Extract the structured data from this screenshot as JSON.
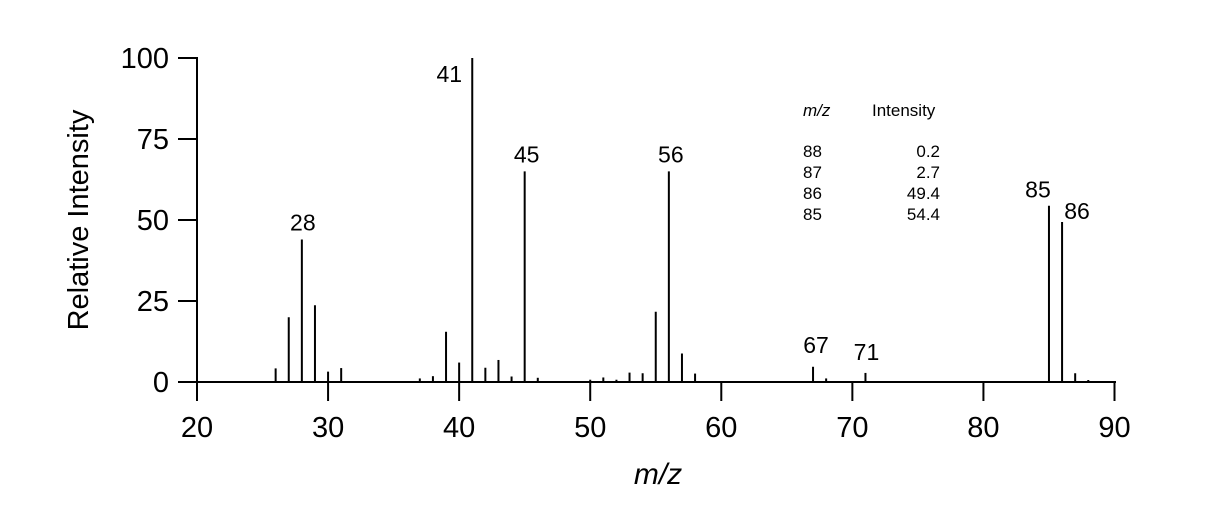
{
  "figure": {
    "background_color": "#ffffff",
    "ink_color": "#000000"
  },
  "chart_data": {
    "type": "bar",
    "title": "",
    "xlabel": "m/z",
    "ylabel": "Relative Intensity",
    "xlim": [
      20,
      90
    ],
    "ylim": [
      0,
      100
    ],
    "x_ticks": [
      20,
      30,
      40,
      50,
      60,
      70,
      80,
      90
    ],
    "y_ticks": [
      0,
      25,
      50,
      75,
      100
    ],
    "grid": false,
    "legend": "none",
    "peaks": [
      {
        "mz": 26,
        "intensity": 4.2
      },
      {
        "mz": 27,
        "intensity": 20
      },
      {
        "mz": 28,
        "intensity": 44,
        "label": "28",
        "label_dx": 1,
        "label_dy": 0
      },
      {
        "mz": 29,
        "intensity": 23.7
      },
      {
        "mz": 30,
        "intensity": 3.2
      },
      {
        "mz": 31,
        "intensity": 4.3
      },
      {
        "mz": 37,
        "intensity": 1.1
      },
      {
        "mz": 38,
        "intensity": 1.8
      },
      {
        "mz": 39,
        "intensity": 15.5
      },
      {
        "mz": 40,
        "intensity": 6
      },
      {
        "mz": 41,
        "intensity": 100,
        "label": "41",
        "label_dx": -23,
        "label_dy": 33
      },
      {
        "mz": 42,
        "intensity": 4.4
      },
      {
        "mz": 43,
        "intensity": 6.8
      },
      {
        "mz": 44,
        "intensity": 1.7
      },
      {
        "mz": 45,
        "intensity": 65,
        "label": "45",
        "label_dx": 2,
        "label_dy": 0
      },
      {
        "mz": 46,
        "intensity": 1.3
      },
      {
        "mz": 50,
        "intensity": 0.7
      },
      {
        "mz": 51,
        "intensity": 1.4
      },
      {
        "mz": 52,
        "intensity": 0.7
      },
      {
        "mz": 53,
        "intensity": 2.9
      },
      {
        "mz": 54,
        "intensity": 2.7
      },
      {
        "mz": 55,
        "intensity": 21.7
      },
      {
        "mz": 56,
        "intensity": 65,
        "label": "56",
        "label_dx": 2,
        "label_dy": 0
      },
      {
        "mz": 57,
        "intensity": 8.8
      },
      {
        "mz": 58,
        "intensity": 2.6
      },
      {
        "mz": 67,
        "intensity": 4.7,
        "label": "67",
        "label_dx": 3,
        "label_dy": -5
      },
      {
        "mz": 68,
        "intensity": 1.1
      },
      {
        "mz": 71,
        "intensity": 2.8,
        "label": "71",
        "label_dx": 1,
        "label_dy": -4
      },
      {
        "mz": 85,
        "intensity": 54.4,
        "label": "85",
        "label_dx": -11,
        "label_dy": 1
      },
      {
        "mz": 86,
        "intensity": 49.4,
        "label": "86",
        "label_dx": 15,
        "label_dy": 6
      },
      {
        "mz": 87,
        "intensity": 2.7
      },
      {
        "mz": 88,
        "intensity": 0.2
      }
    ]
  },
  "inset_table": {
    "headers": [
      "m/z",
      "Intensity"
    ],
    "rows": [
      {
        "mz": "88",
        "intensity": "0.2"
      },
      {
        "mz": "87",
        "intensity": "2.7"
      },
      {
        "mz": "86",
        "intensity": "49.4"
      },
      {
        "mz": "85",
        "intensity": "54.4"
      }
    ]
  }
}
